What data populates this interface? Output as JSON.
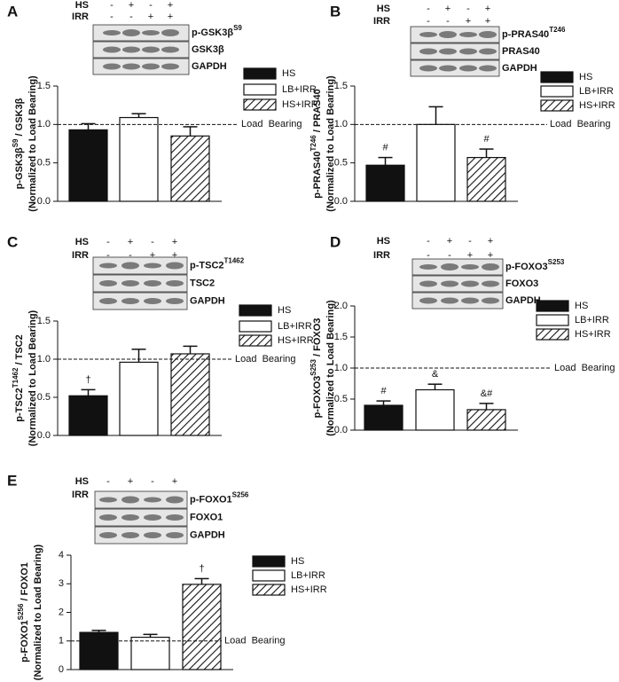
{
  "chart_data": [
    {
      "type": "bar",
      "panel": "A",
      "conditions": [
        {
          "name": "HS",
          "signs": [
            "-",
            "+",
            "-",
            "+"
          ]
        },
        {
          "name": "IRR",
          "signs": [
            "-",
            "-",
            "+",
            "+"
          ]
        }
      ],
      "blot_rows": [
        {
          "name": "p-GSK3β",
          "sup": "S9"
        },
        {
          "name": "GSK3β"
        },
        {
          "name": "GAPDH"
        }
      ],
      "ylabel": [
        "p-GSK3β",
        "S9",
        " / GSK3β"
      ],
      "ylabel2": "(Normalized to Load Bearing)",
      "categories": [
        "HS",
        "LB+IRR",
        "HS+IRR"
      ],
      "values": [
        0.93,
        1.09,
        0.85
      ],
      "errors": [
        0.08,
        0.05,
        0.12
      ],
      "annotations": [
        null,
        null,
        null
      ],
      "colors": [
        "#111111",
        "#ffffff",
        "#ffffff"
      ],
      "hatch": [
        false,
        false,
        true
      ],
      "ylim": [
        0,
        1.5
      ],
      "yticks": [
        {
          "value": 0,
          "label": "0.0"
        },
        {
          "value": 0.5,
          "label": "0.5"
        },
        {
          "value": 1,
          "label": "1.0"
        },
        {
          "value": 1.5,
          "label": "1.5"
        }
      ],
      "refline": {
        "value": 1,
        "label": "Load  Bearing"
      }
    },
    {
      "type": "bar",
      "panel": "B",
      "conditions": [
        {
          "name": "HS",
          "signs": [
            "-",
            "+",
            "-",
            "+"
          ]
        },
        {
          "name": "IRR",
          "signs": [
            "-",
            "-",
            "+",
            "+"
          ]
        }
      ],
      "blot_rows": [
        {
          "name": "p-PRAS40",
          "sup": "T246"
        },
        {
          "name": "PRAS40"
        },
        {
          "name": "GAPDH"
        }
      ],
      "ylabel": [
        "p-PRAS40",
        "T246",
        " / PRAS40"
      ],
      "ylabel2": "(Normalized to  Load  Bearing)",
      "categories": [
        "HS",
        "LB+IRR",
        "HS+IRR"
      ],
      "values": [
        0.47,
        1.0,
        0.57
      ],
      "errors": [
        0.1,
        0.23,
        0.11
      ],
      "annotations": [
        "#",
        null,
        "#"
      ],
      "colors": [
        "#111111",
        "#ffffff",
        "#ffffff"
      ],
      "hatch": [
        false,
        false,
        true
      ],
      "ylim": [
        0,
        1.5
      ],
      "yticks": [
        {
          "value": 0,
          "label": "0.0"
        },
        {
          "value": 0.5,
          "label": "0.5"
        },
        {
          "value": 1,
          "label": "1.0"
        },
        {
          "value": 1.5,
          "label": "1.5"
        }
      ],
      "refline": {
        "value": 1,
        "label": "Load  Bearing"
      }
    },
    {
      "type": "bar",
      "panel": "C",
      "conditions": [
        {
          "name": "HS",
          "signs": [
            "-",
            "+",
            "-",
            "+"
          ]
        },
        {
          "name": "IRR",
          "signs": [
            "-",
            "-",
            "+",
            "+"
          ]
        }
      ],
      "blot_rows": [
        {
          "name": "p-TSC2",
          "sup": "T1462"
        },
        {
          "name": "TSC2"
        },
        {
          "name": "GAPDH"
        }
      ],
      "ylabel": [
        "p-TSC2",
        "T1462",
        " / TSC2"
      ],
      "ylabel2": "(Normalized to  Load  Bearing)",
      "categories": [
        "HS",
        "LB+IRR",
        "HS+IRR"
      ],
      "values": [
        0.52,
        0.96,
        1.07
      ],
      "errors": [
        0.08,
        0.17,
        0.1
      ],
      "annotations": [
        "†",
        null,
        null
      ],
      "colors": [
        "#111111",
        "#ffffff",
        "#ffffff"
      ],
      "hatch": [
        false,
        false,
        true
      ],
      "ylim": [
        0,
        1.5
      ],
      "yticks": [
        {
          "value": 0,
          "label": "0.0"
        },
        {
          "value": 0.5,
          "label": "0.5"
        },
        {
          "value": 1,
          "label": "1.0"
        },
        {
          "value": 1.5,
          "label": "1.5"
        }
      ],
      "refline": {
        "value": 1,
        "label": "Load  Bearing"
      }
    },
    {
      "type": "bar",
      "panel": "D",
      "conditions": [
        {
          "name": "HS",
          "signs": [
            "-",
            "+",
            "-",
            "+"
          ]
        },
        {
          "name": "IRR",
          "signs": [
            "-",
            "-",
            "+",
            "+"
          ]
        }
      ],
      "blot_rows": [
        {
          "name": "p-FOXO3",
          "sup": "S253"
        },
        {
          "name": "FOXO3"
        },
        {
          "name": "GAPDH"
        }
      ],
      "ylabel": [
        "p-FOXO3",
        "S253",
        " / FOXO3"
      ],
      "ylabel2": "(Normalized to  Load  Bearing)",
      "categories": [
        "HS",
        "LB+IRR",
        "HS+IRR"
      ],
      "values": [
        0.4,
        0.65,
        0.33
      ],
      "errors": [
        0.07,
        0.09,
        0.1
      ],
      "annotations": [
        "#",
        "&",
        "&#"
      ],
      "colors": [
        "#111111",
        "#ffffff",
        "#ffffff"
      ],
      "hatch": [
        false,
        false,
        true
      ],
      "ylim": [
        0,
        2
      ],
      "yticks": [
        {
          "value": 0,
          "label": "0.0"
        },
        {
          "value": 0.5,
          "label": "0.5"
        },
        {
          "value": 1,
          "label": "1.0"
        },
        {
          "value": 1.5,
          "label": "1.5"
        },
        {
          "value": 2,
          "label": "2.0"
        }
      ],
      "refline": {
        "value": 1,
        "label": "Load  Bearing"
      }
    },
    {
      "type": "bar",
      "panel": "E",
      "conditions": [
        {
          "name": "HS",
          "signs": [
            "-",
            "+",
            "-",
            "+"
          ]
        },
        {
          "name": "IRR",
          "signs": [
            "-",
            "-",
            "+",
            "+"
          ]
        }
      ],
      "blot_rows": [
        {
          "name": "p-FOXO1",
          "sup": "S256"
        },
        {
          "name": "FOXO1"
        },
        {
          "name": "GAPDH"
        }
      ],
      "ylabel": [
        "p-FOXO1",
        "S256",
        " / FOXO1"
      ],
      "ylabel2": "(Normalized to  Load  Bearing)",
      "categories": [
        "HS",
        "LB+IRR",
        "HS+IRR"
      ],
      "values": [
        1.3,
        1.13,
        2.98
      ],
      "errors": [
        0.07,
        0.1,
        0.2
      ],
      "annotations": [
        null,
        null,
        "†"
      ],
      "colors": [
        "#111111",
        "#ffffff",
        "#ffffff"
      ],
      "hatch": [
        false,
        false,
        true
      ],
      "ylim": [
        0,
        4
      ],
      "yticks": [
        0,
        1,
        2,
        3,
        4
      ],
      "refline": {
        "value": 1,
        "label": "Load  Bearing"
      }
    }
  ]
}
